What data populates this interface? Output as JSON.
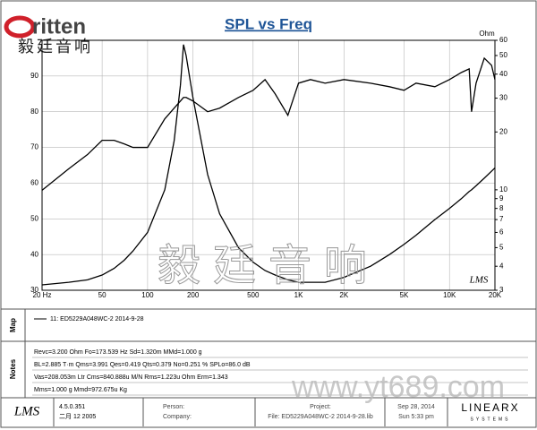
{
  "logo": {
    "name": "ritten",
    "chinese": "毅廷音响"
  },
  "chart_data": {
    "type": "line",
    "title": "SPL vs Freq",
    "y2label": "Ohm",
    "xscale": "log",
    "y2scale": "log",
    "grid": true,
    "xlim": [
      20,
      20000
    ],
    "ylim": [
      30,
      100
    ],
    "y2lim": [
      3,
      60
    ],
    "xticks": [
      {
        "value": 20,
        "label": "20 Hz"
      },
      50,
      100,
      200,
      500,
      {
        "value": 1000,
        "label": "1K"
      },
      {
        "value": 2000,
        "label": "2K"
      },
      {
        "value": 5000,
        "label": "5K"
      },
      {
        "value": 10000,
        "label": "10K"
      },
      {
        "value": 20000,
        "label": "20K"
      }
    ],
    "yticks": [
      30,
      40,
      50,
      60,
      70,
      80,
      90
    ],
    "y2ticks": [
      3,
      4,
      5,
      6,
      7,
      8,
      9,
      10,
      20,
      30,
      40,
      50,
      60
    ],
    "x": [
      20,
      30,
      40,
      50,
      60,
      70,
      80,
      100,
      130,
      150,
      165,
      173,
      180,
      200,
      250,
      300,
      400,
      500,
      600,
      700,
      850,
      1000,
      1200,
      1500,
      2000,
      3000,
      4000,
      5000,
      6000,
      8000,
      10000,
      12000,
      13500,
      14000,
      15000,
      17000,
      19000,
      20000
    ],
    "series": [
      {
        "color": "#000000",
        "values": [
          58,
          64,
          68,
          72,
          72,
          71,
          70,
          70,
          78,
          81,
          83,
          84,
          84,
          83,
          80,
          81,
          84,
          86,
          89,
          85,
          79,
          88,
          89,
          88,
          89,
          88,
          87,
          86,
          88,
          87,
          89,
          91,
          92,
          80,
          88,
          95,
          93,
          89
        ]
      },
      {
        "color": "#000000",
        "axis": "y2",
        "values": [
          3.2,
          3.3,
          3.4,
          3.6,
          3.9,
          4.3,
          4.8,
          6,
          10,
          18,
          35,
          57,
          50,
          30,
          12,
          7.5,
          5,
          4.2,
          3.8,
          3.6,
          3.4,
          3.3,
          3.3,
          3.3,
          3.5,
          4,
          4.6,
          5.2,
          5.8,
          7,
          8,
          9,
          9.8,
          10,
          10.5,
          11.5,
          12.5,
          13
        ]
      }
    ],
    "plot_logo": "LMS"
  },
  "map": {
    "label": "Map",
    "legend": "11: ED5229A048WC-2    2014-9-28"
  },
  "notes": {
    "label": "Notes",
    "lines": [
      "Revc=3.200 Ohm  Fo=173.539 Hz  Sd=1.320m  MMd=1.000 g",
      "BL=2.885 T·m  Qms=3.991  Qes=0.419  Qts=0.379  No=0.251 %  SPLo=86.0 dB",
      "Vas=208.053m Ltr  Cms=840.888u M/N  Rms=1.223u Ohm  Erm=1.343",
      "Mms=1.000 g  Mmd=972.675u Kg"
    ]
  },
  "footer": {
    "logo": "LMS",
    "version": "4.5.0.351",
    "build": "二月 12 2005",
    "person": "Person:",
    "company": "Company:",
    "project": "Project:",
    "file": "File: ED5229A048WC-2   2014-9-28.lib",
    "date": "Sep 28, 2014",
    "time": "Sun  5:33 pm",
    "brand": "LINEARX",
    "brand_sub": "SYSTEMS"
  },
  "watermark": {
    "text": "毅廷音响",
    "url": "www.yt689.com"
  }
}
